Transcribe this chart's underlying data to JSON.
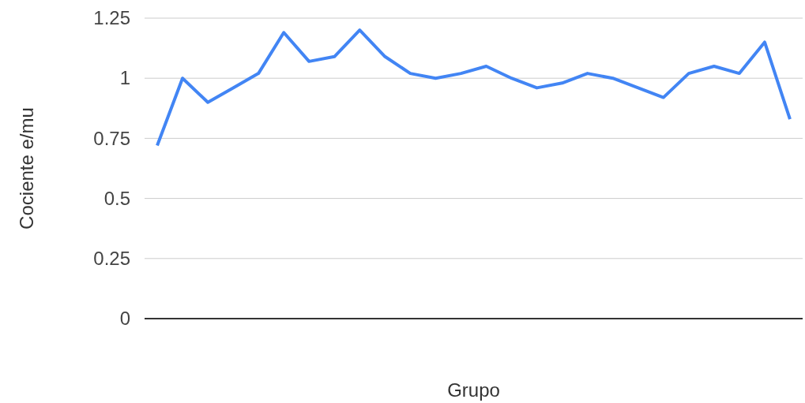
{
  "chart_data": {
    "type": "line",
    "xlabel": "Grupo",
    "ylabel": "Cociente e/mu",
    "categories": [
      null,
      null,
      null,
      null,
      null,
      null,
      null,
      null,
      null,
      null,
      null,
      null,
      null,
      null,
      null,
      null,
      null,
      null,
      null,
      null,
      null,
      null,
      null,
      null,
      null,
      null
    ],
    "series": [
      {
        "color": "#4285f4",
        "values": [
          0.72,
          1.0,
          0.9,
          0.96,
          1.02,
          1.19,
          1.07,
          1.09,
          1.2,
          1.09,
          1.02,
          1.0,
          1.02,
          1.05,
          1.0,
          0.96,
          0.98,
          1.02,
          1.0,
          0.96,
          0.92,
          1.02,
          1.05,
          1.02,
          1.15,
          0.83
        ]
      }
    ],
    "ylim": [
      0,
      1.25
    ],
    "yticks": [
      0,
      {
        "value": 0.25,
        "label": "0.25"
      },
      {
        "value": 0.5,
        "label": "0.5"
      },
      {
        "value": 0.75,
        "label": "0.75"
      },
      1,
      {
        "value": 1.25,
        "label": "1.25"
      }
    ],
    "grid": "y",
    "marker": "none",
    "line_style": "solid"
  }
}
